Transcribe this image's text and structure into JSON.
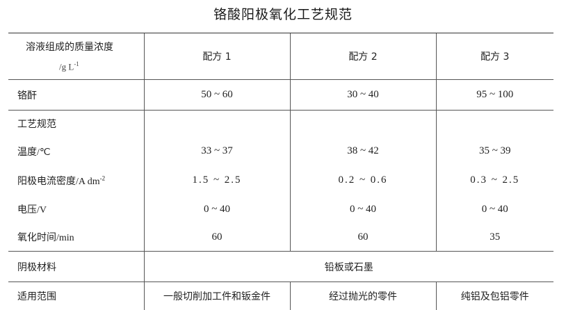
{
  "title": "铬酸阳极氧化工艺规范",
  "header": {
    "label": "溶液组成的质量浓度",
    "unit": "/g  L",
    "unit_exp": "-1",
    "columns": [
      "配方 1",
      "配方 2",
      "配方 3"
    ]
  },
  "rows": [
    {
      "label": "铬酐",
      "unit": "",
      "values": [
        "50 ~ 60",
        "30 ~ 40",
        "95 ~ 100"
      ]
    },
    {
      "label": "工艺规范",
      "unit": "",
      "values": [
        "",
        "",
        ""
      ]
    },
    {
      "label": "温度",
      "unit": "/℃",
      "values": [
        "33 ~ 37",
        "38 ~ 42",
        "35 ~ 39"
      ]
    },
    {
      "label": "阳极电流密度",
      "unit": "/A  dm",
      "unit_exp": "-2",
      "values": [
        "1.5 ~ 2.5",
        "0.2 ~ 0.6",
        "0.3 ~ 2.5"
      ]
    },
    {
      "label": "电压",
      "unit": "/V",
      "values": [
        "0 ~ 40",
        "0 ~ 40",
        "0 ~ 40"
      ]
    },
    {
      "label": "氧化时间",
      "unit": "/min",
      "values": [
        "60",
        "60",
        "35"
      ]
    }
  ],
  "cathode": {
    "label": "阴极材料",
    "value": "铅板或石墨"
  },
  "scope": {
    "label": "适用范围",
    "values": [
      "一般切削加工件和钣金件",
      "经过抛光的零件",
      "纯铝及包铝零件"
    ]
  }
}
